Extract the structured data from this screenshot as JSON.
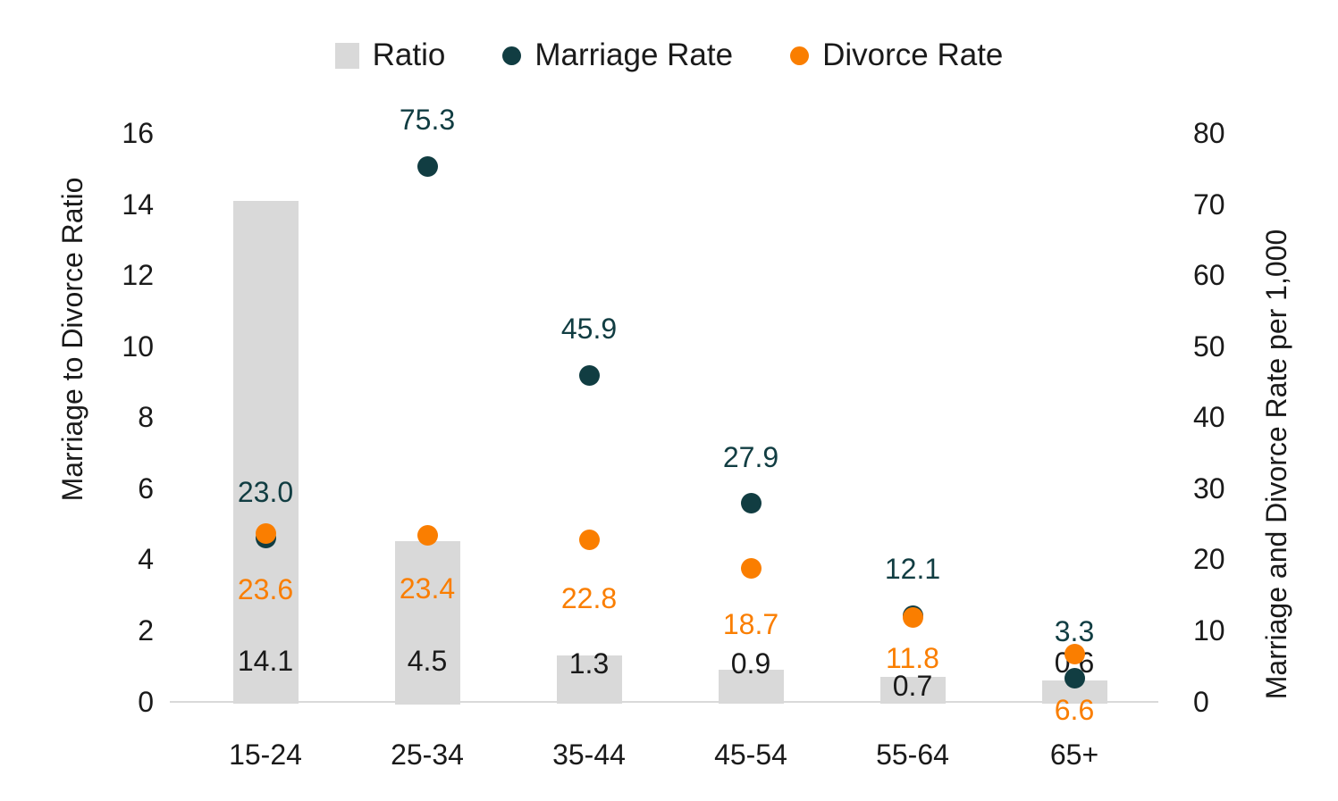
{
  "legend": {
    "items": [
      {
        "label": "Ratio",
        "marker": "square",
        "color": "#D9D9D9"
      },
      {
        "label": "Marriage Rate",
        "marker": "circle",
        "color": "#113D42"
      },
      {
        "label": "Divorce Rate",
        "marker": "circle",
        "color": "#FA7E00"
      }
    ]
  },
  "chart_data": {
    "type": "combo",
    "categories": [
      "15-24",
      "25-34",
      "35-44",
      "45-54",
      "55-64",
      "65+"
    ],
    "series": [
      {
        "name": "Ratio",
        "type": "bar",
        "axis": "left",
        "color": "#D9D9D9",
        "values": [
          14.1,
          4.5,
          1.3,
          0.9,
          0.7,
          0.6
        ],
        "labels": [
          "14.1",
          "4.5",
          "1.3",
          "0.9",
          "0.7",
          "0.6"
        ],
        "label_color": "#1A1A1A"
      },
      {
        "name": "Marriage Rate",
        "type": "scatter",
        "axis": "right",
        "color": "#113D42",
        "values": [
          23.0,
          75.3,
          45.9,
          27.9,
          12.1,
          3.3
        ],
        "labels": [
          "23.0",
          "75.3",
          "45.9",
          "27.9",
          "12.1",
          "3.3"
        ],
        "label_color": "#113D42"
      },
      {
        "name": "Divorce Rate",
        "type": "scatter",
        "axis": "right",
        "color": "#FA7E00",
        "values": [
          23.6,
          23.4,
          22.8,
          18.7,
          11.8,
          6.6
        ],
        "labels": [
          "23.6",
          "23.4",
          "22.8",
          "18.7",
          "11.8",
          "6.6"
        ],
        "label_color": "#FA7E00"
      }
    ],
    "left_axis": {
      "title": "Marriage to Divorce Ratio",
      "ticks": [
        "0",
        "2",
        "4",
        "6",
        "8",
        "10",
        "12",
        "14",
        "16"
      ],
      "range": [
        0,
        16
      ]
    },
    "right_axis": {
      "title": "Marriage and Divorce Rate per 1,000",
      "ticks": [
        "0",
        "10",
        "20",
        "30",
        "40",
        "50",
        "60",
        "70",
        "80"
      ],
      "range": [
        0,
        80
      ]
    },
    "grid": false,
    "legend_position": "top",
    "label_layout": {
      "marriage_label_dy": -52,
      "divorce_label_dy": [
        62,
        60,
        66,
        62,
        45,
        62
      ],
      "ratio_label_y": [
        740,
        740,
        743,
        743,
        768,
        742
      ]
    }
  }
}
